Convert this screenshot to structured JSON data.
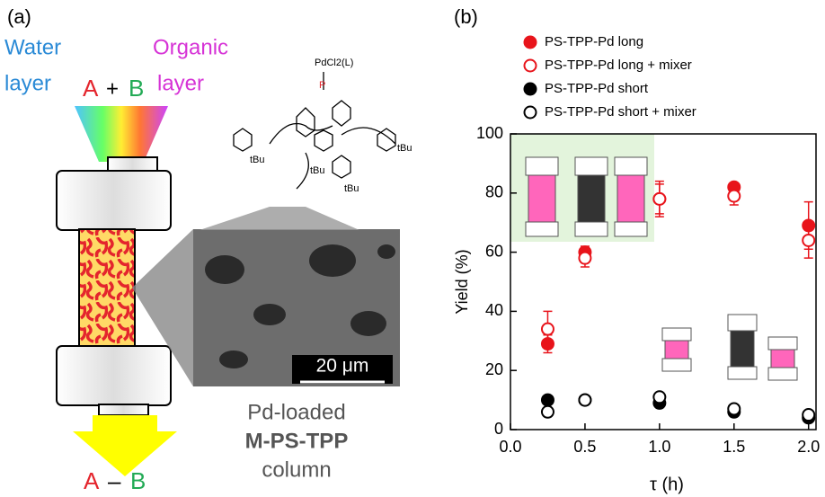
{
  "panel_a": {
    "label": "(a)",
    "water": [
      "Water",
      "layer"
    ],
    "organic": [
      "Organic",
      "layer"
    ],
    "reactant_a": "A",
    "plus": "+",
    "reactant_b": "B",
    "product_a": "A",
    "dash": "–",
    "product_b": "B",
    "ligand": "PdCl2(L)",
    "phosphorus": "P",
    "tbu": [
      "tBu",
      "tBu",
      "tBu",
      "tBu"
    ],
    "scale_bar": "20 μm",
    "caption": [
      "Pd-loaded",
      "M-PS-TPP",
      "column"
    ]
  },
  "chart_data": {
    "type": "scatter",
    "panel_label": "(b)",
    "x_label": "τ (h)",
    "y_label": "Yield (%)",
    "xlim": [
      0,
      2.05
    ],
    "ylim": [
      0,
      100
    ],
    "xticks": [
      {
        "value": 0,
        "label": "0.0"
      },
      0.5,
      {
        "value": 1,
        "label": "1.0"
      },
      1.5,
      {
        "value": 2,
        "label": "2.0"
      }
    ],
    "yticks": [
      0,
      20,
      40,
      60,
      80,
      100
    ],
    "x": [
      0.25,
      0.5,
      1,
      1.5,
      2
    ],
    "series": [
      {
        "name": "PS-TPP-Pd long",
        "color": "#e8141b",
        "marker": "filled",
        "values": [
          29,
          60,
          78,
          82,
          69
        ],
        "errors": [
          3,
          2,
          5,
          1,
          8
        ]
      },
      {
        "name": "PS-TPP-Pd long + mixer",
        "color": "#e8141b",
        "marker": "open",
        "values": [
          34,
          58,
          78,
          79,
          64
        ],
        "errors": [
          6,
          3,
          6,
          3,
          6
        ]
      },
      {
        "name": "PS-TPP-Pd short",
        "color": "#000000",
        "marker": "filled",
        "values": [
          10,
          10,
          9,
          6,
          4
        ]
      },
      {
        "name": "PS-TPP-Pd short + mixer",
        "color": "#000000",
        "marker": "open",
        "values": [
          6,
          10,
          11,
          7,
          5
        ]
      }
    ]
  }
}
